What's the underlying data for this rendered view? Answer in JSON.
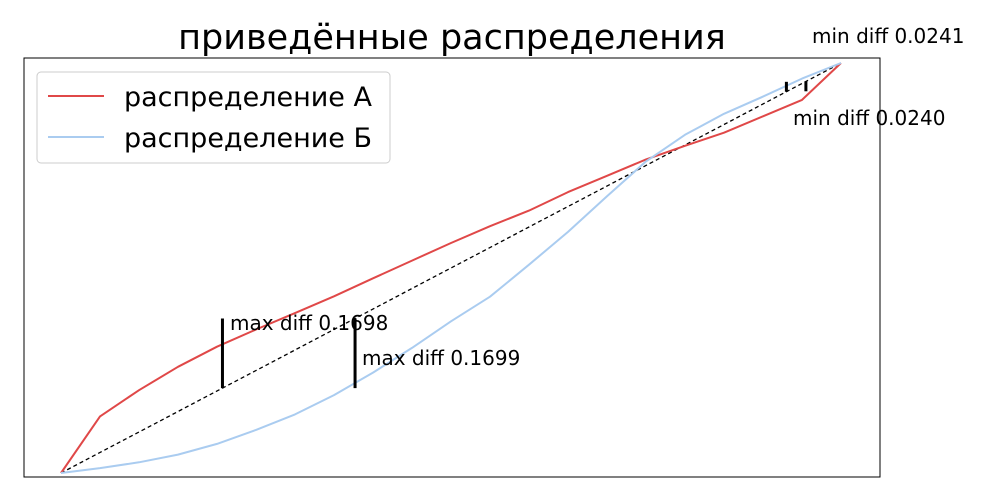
{
  "chart_data": {
    "type": "line",
    "title": "приведённые распределения",
    "xlabel": "",
    "ylabel": "",
    "xlim": [
      0,
      1
    ],
    "ylim": [
      0,
      1
    ],
    "axes_visible": false,
    "grid": false,
    "legend_position": "upper-left",
    "colors": {
      "series_a": "#e04848",
      "series_b": "#aaccf0",
      "diagonal": "#000000",
      "annotation": "#000000"
    },
    "x": [
      0,
      0.05,
      0.1,
      0.15,
      0.2,
      0.25,
      0.3,
      0.35,
      0.4,
      0.45,
      0.5,
      0.55,
      0.6,
      0.65,
      0.7,
      0.75,
      0.8,
      0.85,
      0.9,
      0.95,
      1.0
    ],
    "series": [
      {
        "name": "распределение А",
        "values": [
          0,
          0.138,
          0.202,
          0.259,
          0.308,
          0.35,
          0.39,
          0.431,
          0.475,
          0.518,
          0.561,
          0.602,
          0.64,
          0.685,
          0.725,
          0.765,
          0.798,
          0.83,
          0.87,
          0.91,
          1.0
        ]
      },
      {
        "name": "распределение Б",
        "values": [
          0,
          0.012,
          0.026,
          0.045,
          0.071,
          0.105,
          0.143,
          0.19,
          0.245,
          0.305,
          0.37,
          0.43,
          0.508,
          0.588,
          0.675,
          0.76,
          0.825,
          0.876,
          0.918,
          0.962,
          1.0
        ]
      }
    ],
    "reference_line": {
      "style": "dashed",
      "points": [
        [
          0,
          0
        ],
        [
          1,
          1
        ]
      ]
    },
    "annotations": [
      {
        "text": "max diff 0.1698",
        "x": 0.207,
        "y_from": 0.207,
        "y_to": 0.3768
      },
      {
        "text": "max diff 0.1699",
        "x": 0.377,
        "y_from": 0.2071,
        "y_to": 0.377
      },
      {
        "text": "min diff 0.0241",
        "x": 0.93,
        "y_from": 0.93,
        "y_to": 0.9541
      },
      {
        "text": "min diff 0.0240",
        "x": 0.955,
        "y_from": 0.931,
        "y_to": 0.955
      }
    ]
  }
}
